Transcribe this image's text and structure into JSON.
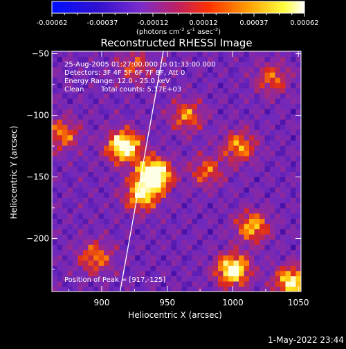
{
  "colorbar": {
    "ticks": [
      "-0.00062",
      "-0.00037",
      "-0.00012",
      "0.00012",
      "0.00037",
      "0.00062"
    ],
    "unit_parts": [
      "(photons cm",
      "-2",
      " s",
      "-1",
      " asec",
      "-2",
      ")"
    ]
  },
  "chart_data": {
    "type": "heatmap",
    "title": "Reconstructed RHESSI Image",
    "xlabel": "Heliocentric X (arcsec)",
    "ylabel": "Heliocentric Y (arcsec)",
    "xlim": [
      862,
      1052
    ],
    "ylim": [
      -243,
      -48
    ],
    "xticks": [
      900,
      950,
      1000,
      1050
    ],
    "yticks": [
      -50,
      -100,
      -150,
      -200
    ],
    "color_range": [
      -0.00062,
      0.00062
    ],
    "colormap": [
      "#0000ff",
      "#4400aa",
      "#7a2ccc",
      "#d33040",
      "#ff8800",
      "#ffe000",
      "#ffffff"
    ],
    "annotations": [
      "25-Aug-2005 01:27:00.000 to 01:33:00.000",
      "Detectors: 3F 4F 5F 6F 7F 8F, Att 0",
      "Energy Range: 12.0 - 25.0 keV",
      "Clean",
      "Total counts: 5.17E+03"
    ],
    "peak_label": "Position of Peak = [917,-125]",
    "peak_position": [
      917,
      -125
    ],
    "limb_line": [
      [
        914,
        -243
      ],
      [
        947,
        -48
      ]
    ],
    "sources": [
      {
        "x": 940,
        "y": -148,
        "amp": 1.0
      },
      {
        "x": 917,
        "y": -125,
        "amp": 0.85
      },
      {
        "x": 1000,
        "y": -225,
        "amp": 0.8
      },
      {
        "x": 1045,
        "y": -235,
        "amp": 0.7
      },
      {
        "x": 930,
        "y": -165,
        "amp": 0.6
      },
      {
        "x": 1015,
        "y": -190,
        "amp": 0.55
      },
      {
        "x": 1005,
        "y": -125,
        "amp": 0.5
      },
      {
        "x": 965,
        "y": -100,
        "amp": 0.45
      },
      {
        "x": 870,
        "y": -115,
        "amp": 0.45
      },
      {
        "x": 895,
        "y": -215,
        "amp": 0.45
      },
      {
        "x": 980,
        "y": -145,
        "amp": 0.4
      },
      {
        "x": 1030,
        "y": -70,
        "amp": 0.4
      },
      {
        "x": 925,
        "y": -60,
        "amp": 0.35
      }
    ]
  },
  "timestamp": "1-May-2022 23:44"
}
